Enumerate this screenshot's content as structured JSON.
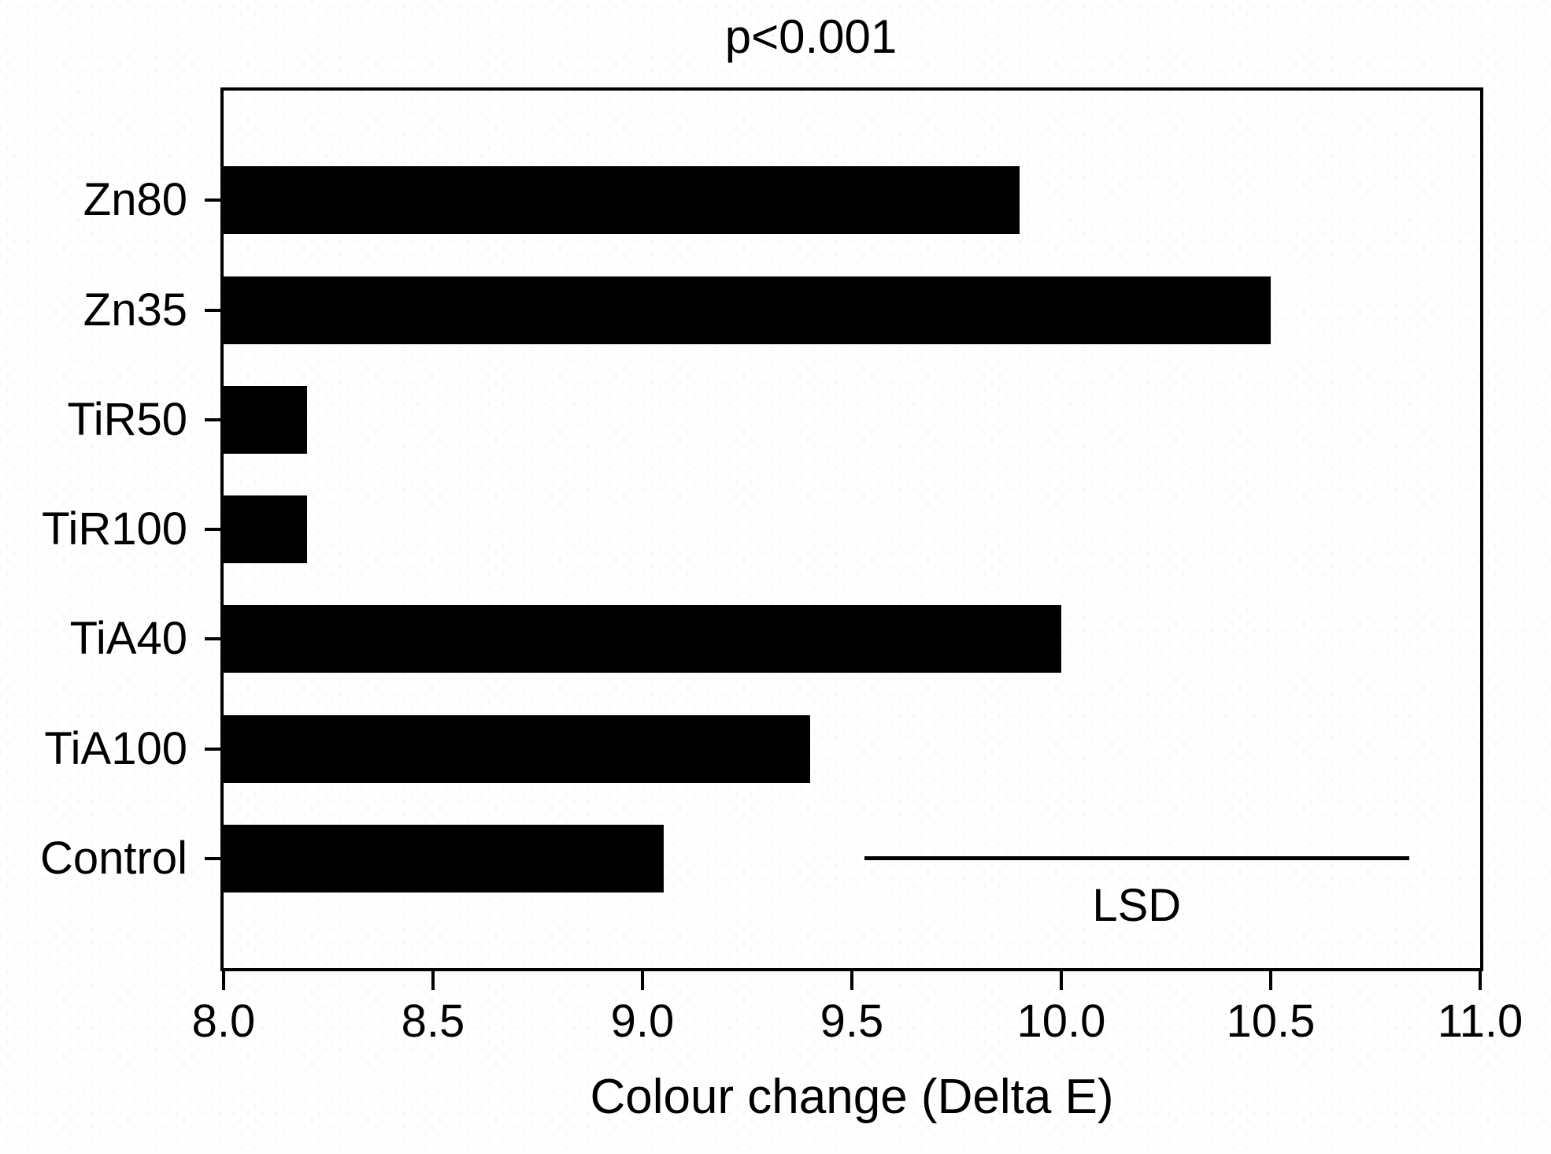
{
  "chart_data": {
    "type": "bar",
    "orientation": "horizontal",
    "title": "p<0.001",
    "xlabel": "Colour change (Delta E)",
    "ylabel": "",
    "categories": [
      "Zn80",
      "Zn35",
      "TiR50",
      "TiR100",
      "TiA40",
      "TiA100",
      "Control"
    ],
    "values": [
      9.9,
      10.5,
      8.2,
      8.2,
      10.0,
      9.4,
      9.05
    ],
    "xlim": [
      8.0,
      11.0
    ],
    "xtick_labels": [
      "8.0",
      "8.5",
      "9.0",
      "9.5",
      "10.0",
      "10.5",
      "11.0"
    ],
    "grid": false,
    "legend": "none",
    "bar_color": "#000000",
    "frame_color": "#000000",
    "background_color": "#fefefe",
    "annotation": {
      "label": "LSD",
      "x_start": 9.53,
      "x_end": 10.83,
      "align_category": "Control"
    }
  }
}
